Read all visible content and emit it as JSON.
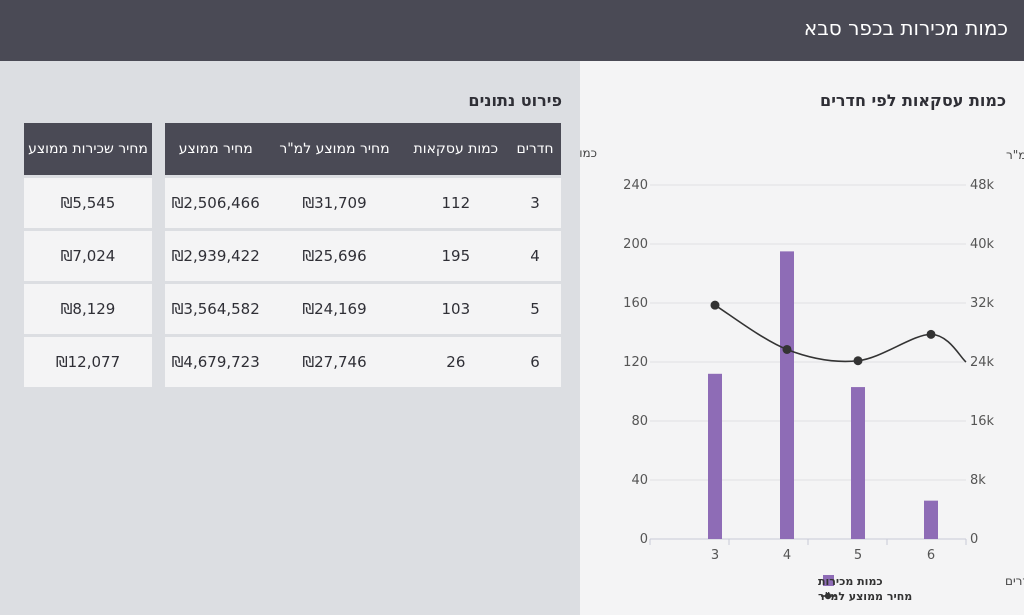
{
  "header": {
    "title": "כמות מכירות בכפר סבא"
  },
  "chart_section": {
    "title": "כמות עסקאות לפי חדרים"
  },
  "chart_data": {
    "type": "bar",
    "title": "כמות עסקאות לפי חדרים",
    "categories": [
      "3",
      "4",
      "5",
      "6"
    ],
    "xlabel": "חדרים",
    "left_axis_label": "כמות עסקאות",
    "right_axis_label": "מחיר ממוצע למ\"ר",
    "left_ticks": [
      "0",
      "40",
      "80",
      "120",
      "160",
      "200",
      "240"
    ],
    "right_ticks": [
      "0",
      "8k",
      "16k",
      "24k",
      "32k",
      "40k",
      "48k"
    ],
    "left_ylim": [
      0,
      240
    ],
    "right_ylim": [
      0,
      48000
    ],
    "grid": true,
    "legend_position": "bottom",
    "series": [
      {
        "name": "כמות מכירות",
        "type": "bar",
        "axis": "left",
        "values": [
          112,
          195,
          103,
          26
        ],
        "color": "#8e6cb6"
      },
      {
        "name": "מחיר ממוצע למ\"ר",
        "type": "line",
        "axis": "right",
        "values": [
          31709,
          25696,
          24169,
          27746
        ],
        "color": "#333333"
      }
    ]
  },
  "table_section": {
    "title": "פירוט נתונים"
  },
  "main_table": {
    "headers": [
      "חדרים",
      "כמות עסקאות",
      "מחיר ממוצע למ\"ר",
      "מחיר ממוצע"
    ],
    "rows": [
      [
        "3",
        "112",
        "₪31,709",
        "₪2,506,466"
      ],
      [
        "4",
        "195",
        "₪25,696",
        "₪2,939,422"
      ],
      [
        "5",
        "103",
        "₪24,169",
        "₪3,564,582"
      ],
      [
        "6",
        "26",
        "₪27,746",
        "₪4,679,723"
      ]
    ]
  },
  "rent_table": {
    "header": "מחיר שכירות ממוצע",
    "rows": [
      "₪5,545",
      "₪7,024",
      "₪8,129",
      "₪12,077"
    ]
  }
}
